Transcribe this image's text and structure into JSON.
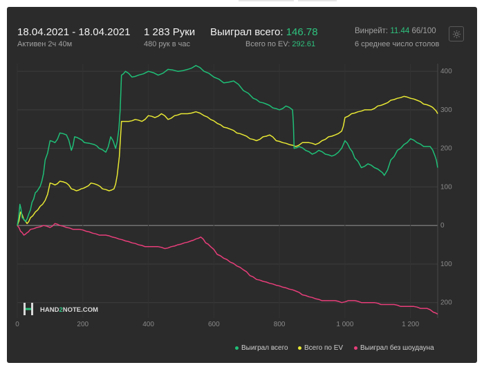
{
  "header": {
    "date_range": "18.04.2021 - 18.04.2021",
    "active": "Активен 2ч 40м",
    "hands": "1 283 Руки",
    "hands_per_hour": "480 рук в час",
    "won_label": "Выиграл всего:",
    "won_value": "146.78",
    "ev_label": "Всего по EV:",
    "ev_value": "292.61",
    "winrate_label": "Винрейт:",
    "winrate_value": "11.44",
    "winrate_suffix": "66/100",
    "avg_tables": "6 среднее число столов"
  },
  "watermark": {
    "brand_pre": "HAND",
    "brand_digit": "2",
    "brand_post": "NOTE.COM"
  },
  "icons": {
    "settings": "gear-icon",
    "logo": "hand2note-logo-icon"
  },
  "colors": {
    "won": "#1fbf77",
    "ev": "#e8e834",
    "no_showdown": "#e83e7a",
    "panel_bg": "#2b2b2b"
  },
  "chart_data": {
    "type": "line",
    "xlim": [
      0,
      1283
    ],
    "ylim": [
      -240,
      420
    ],
    "x_ticks": [
      0,
      200,
      400,
      600,
      800,
      1000,
      1200
    ],
    "x_tick_labels": [
      "0",
      "200",
      "400",
      "600",
      "800",
      "1 000",
      "1 200"
    ],
    "y_ticks": [
      400,
      300,
      200,
      100,
      0,
      -100,
      -200
    ],
    "y_tick_labels": [
      "400",
      "300",
      "200",
      "100",
      "0",
      "100",
      "200"
    ],
    "grid": true,
    "legend_position": "bottom-right",
    "series": [
      {
        "name": "Выиграл всего",
        "color": "#1fbf77",
        "points": [
          [
            0,
            0
          ],
          [
            8,
            55
          ],
          [
            15,
            20
          ],
          [
            25,
            10
          ],
          [
            35,
            30
          ],
          [
            45,
            60
          ],
          [
            55,
            85
          ],
          [
            65,
            95
          ],
          [
            75,
            115
          ],
          [
            85,
            170
          ],
          [
            100,
            220
          ],
          [
            115,
            215
          ],
          [
            130,
            240
          ],
          [
            150,
            235
          ],
          [
            165,
            195
          ],
          [
            175,
            230
          ],
          [
            190,
            225
          ],
          [
            205,
            215
          ],
          [
            235,
            210
          ],
          [
            250,
            200
          ],
          [
            270,
            190
          ],
          [
            285,
            230
          ],
          [
            300,
            200
          ],
          [
            310,
            250
          ],
          [
            318,
            390
          ],
          [
            330,
            400
          ],
          [
            350,
            385
          ],
          [
            370,
            390
          ],
          [
            400,
            400
          ],
          [
            430,
            390
          ],
          [
            460,
            405
          ],
          [
            490,
            400
          ],
          [
            520,
            405
          ],
          [
            545,
            415
          ],
          [
            570,
            400
          ],
          [
            600,
            385
          ],
          [
            630,
            370
          ],
          [
            660,
            375
          ],
          [
            690,
            350
          ],
          [
            720,
            330
          ],
          [
            740,
            320
          ],
          [
            760,
            315
          ],
          [
            780,
            305
          ],
          [
            800,
            300
          ],
          [
            820,
            310
          ],
          [
            840,
            300
          ],
          [
            845,
            200
          ],
          [
            860,
            205
          ],
          [
            880,
            195
          ],
          [
            900,
            185
          ],
          [
            920,
            195
          ],
          [
            940,
            185
          ],
          [
            960,
            180
          ],
          [
            980,
            190
          ],
          [
            1000,
            220
          ],
          [
            1015,
            200
          ],
          [
            1030,
            175
          ],
          [
            1050,
            150
          ],
          [
            1070,
            160
          ],
          [
            1090,
            150
          ],
          [
            1110,
            140
          ],
          [
            1120,
            130
          ],
          [
            1140,
            170
          ],
          [
            1160,
            195
          ],
          [
            1180,
            210
          ],
          [
            1200,
            225
          ],
          [
            1220,
            215
          ],
          [
            1240,
            205
          ],
          [
            1260,
            205
          ],
          [
            1275,
            180
          ],
          [
            1283,
            150
          ]
        ]
      },
      {
        "name": "Всего по EV",
        "color": "#e8e834",
        "points": [
          [
            0,
            0
          ],
          [
            10,
            35
          ],
          [
            20,
            15
          ],
          [
            30,
            5
          ],
          [
            40,
            20
          ],
          [
            55,
            35
          ],
          [
            70,
            50
          ],
          [
            85,
            65
          ],
          [
            100,
            110
          ],
          [
            115,
            105
          ],
          [
            130,
            115
          ],
          [
            150,
            110
          ],
          [
            165,
            95
          ],
          [
            180,
            90
          ],
          [
            195,
            95
          ],
          [
            210,
            100
          ],
          [
            225,
            110
          ],
          [
            245,
            105
          ],
          [
            260,
            95
          ],
          [
            280,
            90
          ],
          [
            295,
            95
          ],
          [
            305,
            130
          ],
          [
            318,
            270
          ],
          [
            340,
            270
          ],
          [
            360,
            275
          ],
          [
            380,
            270
          ],
          [
            400,
            285
          ],
          [
            420,
            280
          ],
          [
            440,
            290
          ],
          [
            460,
            275
          ],
          [
            480,
            285
          ],
          [
            500,
            290
          ],
          [
            520,
            290
          ],
          [
            545,
            295
          ],
          [
            570,
            285
          ],
          [
            590,
            275
          ],
          [
            610,
            265
          ],
          [
            630,
            255
          ],
          [
            650,
            250
          ],
          [
            670,
            240
          ],
          [
            690,
            235
          ],
          [
            710,
            225
          ],
          [
            730,
            220
          ],
          [
            750,
            230
          ],
          [
            770,
            235
          ],
          [
            790,
            220
          ],
          [
            810,
            215
          ],
          [
            830,
            210
          ],
          [
            850,
            205
          ],
          [
            870,
            215
          ],
          [
            890,
            215
          ],
          [
            910,
            210
          ],
          [
            930,
            220
          ],
          [
            950,
            230
          ],
          [
            970,
            235
          ],
          [
            990,
            245
          ],
          [
            1000,
            280
          ],
          [
            1020,
            290
          ],
          [
            1040,
            295
          ],
          [
            1060,
            300
          ],
          [
            1080,
            300
          ],
          [
            1100,
            310
          ],
          [
            1120,
            315
          ],
          [
            1140,
            325
          ],
          [
            1160,
            330
          ],
          [
            1180,
            335
          ],
          [
            1200,
            330
          ],
          [
            1220,
            325
          ],
          [
            1240,
            315
          ],
          [
            1260,
            310
          ],
          [
            1275,
            300
          ],
          [
            1283,
            290
          ]
        ]
      },
      {
        "name": "Выиграл без шоудауна",
        "color": "#e83e7a",
        "points": [
          [
            0,
            0
          ],
          [
            10,
            -15
          ],
          [
            20,
            -25
          ],
          [
            28,
            -20
          ],
          [
            40,
            -10
          ],
          [
            60,
            -5
          ],
          [
            80,
            0
          ],
          [
            100,
            -5
          ],
          [
            115,
            5
          ],
          [
            130,
            0
          ],
          [
            150,
            -5
          ],
          [
            170,
            -10
          ],
          [
            190,
            -10
          ],
          [
            210,
            -15
          ],
          [
            230,
            -20
          ],
          [
            250,
            -25
          ],
          [
            270,
            -25
          ],
          [
            290,
            -30
          ],
          [
            310,
            -35
          ],
          [
            330,
            -40
          ],
          [
            350,
            -45
          ],
          [
            370,
            -50
          ],
          [
            390,
            -55
          ],
          [
            410,
            -55
          ],
          [
            430,
            -55
          ],
          [
            450,
            -60
          ],
          [
            470,
            -55
          ],
          [
            490,
            -50
          ],
          [
            510,
            -45
          ],
          [
            530,
            -40
          ],
          [
            545,
            -35
          ],
          [
            560,
            -30
          ],
          [
            575,
            -45
          ],
          [
            590,
            -55
          ],
          [
            610,
            -75
          ],
          [
            630,
            -85
          ],
          [
            650,
            -95
          ],
          [
            670,
            -105
          ],
          [
            690,
            -115
          ],
          [
            710,
            -130
          ],
          [
            730,
            -140
          ],
          [
            750,
            -145
          ],
          [
            770,
            -150
          ],
          [
            790,
            -155
          ],
          [
            810,
            -160
          ],
          [
            830,
            -165
          ],
          [
            850,
            -170
          ],
          [
            870,
            -180
          ],
          [
            890,
            -185
          ],
          [
            910,
            -190
          ],
          [
            930,
            -195
          ],
          [
            950,
            -195
          ],
          [
            970,
            -195
          ],
          [
            990,
            -200
          ],
          [
            1010,
            -195
          ],
          [
            1030,
            -195
          ],
          [
            1050,
            -200
          ],
          [
            1070,
            -200
          ],
          [
            1090,
            -200
          ],
          [
            1110,
            -205
          ],
          [
            1130,
            -205
          ],
          [
            1150,
            -205
          ],
          [
            1170,
            -210
          ],
          [
            1190,
            -210
          ],
          [
            1210,
            -210
          ],
          [
            1230,
            -215
          ],
          [
            1250,
            -215
          ],
          [
            1270,
            -225
          ],
          [
            1283,
            -230
          ]
        ]
      }
    ]
  }
}
